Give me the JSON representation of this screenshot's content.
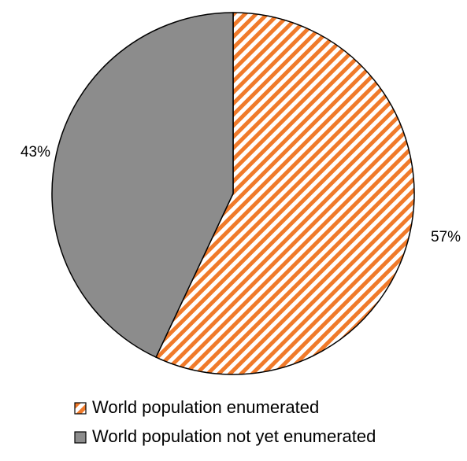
{
  "chart_data": {
    "type": "pie",
    "title": "",
    "series": [
      {
        "values": [
          57,
          43
        ]
      }
    ],
    "slices": [
      {
        "label": "World population enumerated",
        "value": 57,
        "data_label": "57%",
        "fill": "hatched",
        "color": "#f07a2a",
        "outline": "#000000"
      },
      {
        "label": "World population not yet enumerated",
        "value": 43,
        "data_label": "43%",
        "fill": "solid",
        "color": "#8c8c8c",
        "outline": "#000000"
      }
    ],
    "legend": {
      "placement": "bottom",
      "entries": [
        "World population enumerated",
        "World population not yet enumerated"
      ]
    },
    "start_angle": "12 o'clock",
    "direction": "clockwise",
    "grid": false
  }
}
